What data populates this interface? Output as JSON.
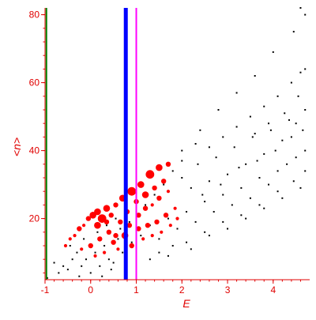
{
  "chart_data": {
    "type": "scatter",
    "title": "",
    "xlabel": "E",
    "ylabel": "<n>",
    "xlim": [
      -1.0,
      4.8
    ],
    "ylim": [
      2,
      82
    ],
    "x_ticks": [
      -1,
      0,
      1,
      2,
      3,
      4
    ],
    "y_ticks": [
      20,
      40,
      60,
      80
    ],
    "grid": false,
    "legend": "none",
    "colors": {
      "axes": "#e00000",
      "black_points": "#000000",
      "red_points": "#ff0000",
      "line_green": "#008000",
      "line_blue": "#0000ff",
      "line_magenta": "#ff00ff"
    },
    "vertical_lines": [
      {
        "x": -0.97,
        "color": "#008000",
        "style": "thin"
      },
      {
        "x": 0.77,
        "color": "#0000ff",
        "style": "thick"
      },
      {
        "x": 1.0,
        "color": "#ff00ff",
        "style": "medium"
      }
    ],
    "series": [
      {
        "marker": "dot",
        "color": "#000000",
        "points": [
          [
            -0.95,
            2.5
          ],
          [
            -0.7,
            4
          ],
          [
            -0.6,
            6
          ],
          [
            -0.5,
            5
          ],
          [
            -0.4,
            8
          ],
          [
            -0.3,
            10
          ],
          [
            -0.2,
            6
          ],
          [
            -0.1,
            8
          ],
          [
            0.0,
            4
          ],
          [
            0.1,
            10
          ],
          [
            0.2,
            6
          ],
          [
            0.3,
            12
          ],
          [
            0.4,
            8
          ],
          [
            0.5,
            7
          ],
          [
            0.6,
            14
          ],
          [
            0.7,
            10
          ],
          [
            0.9,
            13
          ],
          [
            1.1,
            15
          ],
          [
            1.3,
            18
          ],
          [
            1.5,
            14
          ],
          [
            1.7,
            20
          ],
          [
            1.9,
            17
          ],
          [
            2.1,
            22
          ],
          [
            2.3,
            19
          ],
          [
            2.5,
            25
          ],
          [
            2.7,
            22
          ],
          [
            2.9,
            27
          ],
          [
            3.1,
            24
          ],
          [
            3.3,
            29
          ],
          [
            3.5,
            26
          ],
          [
            3.7,
            32
          ],
          [
            3.9,
            30
          ],
          [
            4.1,
            34
          ],
          [
            4.3,
            36
          ],
          [
            4.5,
            38
          ],
          [
            4.7,
            40
          ],
          [
            2.0,
            40
          ],
          [
            2.3,
            42
          ],
          [
            2.6,
            41
          ],
          [
            2.9,
            44
          ],
          [
            3.2,
            47
          ],
          [
            3.5,
            50
          ],
          [
            3.8,
            53
          ],
          [
            4.1,
            56
          ],
          [
            4.4,
            60
          ],
          [
            4.6,
            63
          ],
          [
            4.7,
            64
          ],
          [
            4.6,
            82
          ],
          [
            4.7,
            80
          ],
          [
            4.45,
            75
          ],
          [
            4.0,
            69
          ],
          [
            3.6,
            62
          ],
          [
            3.2,
            57
          ],
          [
            2.8,
            52
          ],
          [
            2.4,
            46
          ],
          [
            2.0,
            32
          ],
          [
            2.2,
            29
          ],
          [
            2.6,
            31
          ],
          [
            3.0,
            33
          ],
          [
            3.4,
            36
          ],
          [
            3.8,
            39
          ],
          [
            4.2,
            43
          ],
          [
            4.5,
            48
          ],
          [
            4.7,
            52
          ],
          [
            1.5,
            10
          ],
          [
            1.8,
            12
          ],
          [
            2.2,
            11
          ],
          [
            2.6,
            15
          ],
          [
            3.0,
            17
          ],
          [
            3.4,
            20
          ],
          [
            3.8,
            23
          ],
          [
            4.2,
            26
          ],
          [
            4.6,
            29
          ],
          [
            -0.8,
            7
          ],
          [
            -0.45,
            12
          ],
          [
            -0.15,
            14
          ],
          [
            0.15,
            16
          ],
          [
            0.35,
            18
          ],
          [
            0.55,
            20
          ],
          [
            1.2,
            24
          ],
          [
            1.4,
            27
          ],
          [
            1.6,
            30
          ],
          [
            1.8,
            34
          ],
          [
            2.0,
            37
          ],
          [
            3.6,
            45
          ],
          [
            3.9,
            48
          ],
          [
            4.25,
            51
          ],
          [
            4.55,
            56
          ],
          [
            2.35,
            36
          ],
          [
            2.75,
            38
          ],
          [
            3.15,
            41
          ],
          [
            3.55,
            44
          ],
          [
            3.95,
            46
          ],
          [
            4.35,
            49
          ],
          [
            1.0,
            22
          ],
          [
            0.85,
            19
          ],
          [
            0.65,
            17
          ],
          [
            2.45,
            27
          ],
          [
            2.85,
            30
          ],
          [
            3.25,
            35
          ],
          [
            3.65,
            37
          ],
          [
            4.05,
            40
          ],
          [
            4.4,
            44
          ],
          [
            4.65,
            46
          ],
          [
            1.3,
            8
          ],
          [
            1.7,
            9
          ],
          [
            2.1,
            13
          ],
          [
            2.5,
            16
          ],
          [
            2.9,
            19
          ],
          [
            3.3,
            21
          ],
          [
            3.7,
            24
          ],
          [
            4.1,
            28
          ],
          [
            4.45,
            31
          ],
          [
            4.7,
            34
          ],
          [
            -0.25,
            3
          ],
          [
            0.25,
            3
          ],
          [
            0.75,
            5
          ],
          [
            0.45,
            5
          ]
        ]
      },
      {
        "marker": "filled-circle",
        "color": "#ff0000",
        "points": [
          [
            -0.55,
            12,
            1
          ],
          [
            -0.45,
            14,
            1
          ],
          [
            -0.35,
            15,
            1
          ],
          [
            -0.25,
            17,
            2
          ],
          [
            -0.15,
            18,
            1
          ],
          [
            -0.05,
            20,
            2
          ],
          [
            0.05,
            21,
            3
          ],
          [
            0.15,
            22,
            3
          ],
          [
            0.25,
            20,
            4
          ],
          [
            0.35,
            23,
            3
          ],
          [
            0.45,
            21,
            2
          ],
          [
            0.55,
            24,
            2
          ],
          [
            0.65,
            19,
            2
          ],
          [
            0.7,
            26,
            3
          ],
          [
            0.8,
            22,
            2
          ],
          [
            0.9,
            28,
            4
          ],
          [
            1.0,
            25,
            2
          ],
          [
            1.1,
            30,
            3
          ],
          [
            1.2,
            27,
            3
          ],
          [
            1.3,
            33,
            4
          ],
          [
            1.4,
            29,
            2
          ],
          [
            1.5,
            35,
            3
          ],
          [
            1.6,
            31,
            2
          ],
          [
            1.7,
            36,
            2
          ],
          [
            -0.2,
            11,
            1
          ],
          [
            0.0,
            12,
            2
          ],
          [
            0.1,
            9,
            1
          ],
          [
            0.2,
            14,
            2
          ],
          [
            0.3,
            10,
            1
          ],
          [
            0.5,
            13,
            2
          ],
          [
            0.6,
            11,
            1
          ],
          [
            0.75,
            15,
            3
          ],
          [
            0.9,
            12,
            2
          ],
          [
            1.05,
            17,
            2
          ],
          [
            1.15,
            14,
            1
          ],
          [
            1.25,
            18,
            2
          ],
          [
            1.35,
            15,
            1
          ],
          [
            1.45,
            19,
            2
          ],
          [
            1.55,
            16,
            1
          ],
          [
            1.65,
            21,
            2
          ],
          [
            1.75,
            18,
            1
          ],
          [
            1.85,
            23,
            1
          ],
          [
            1.9,
            20,
            1
          ],
          [
            0.4,
            16,
            2
          ],
          [
            0.15,
            18,
            3
          ],
          [
            0.35,
            19,
            2
          ],
          [
            0.55,
            15,
            2
          ],
          [
            0.85,
            18,
            2
          ],
          [
            1.05,
            21,
            2
          ],
          [
            1.2,
            23,
            2
          ],
          [
            1.35,
            24,
            1
          ],
          [
            1.5,
            26,
            2
          ],
          [
            1.7,
            28,
            1
          ]
        ]
      }
    ]
  }
}
